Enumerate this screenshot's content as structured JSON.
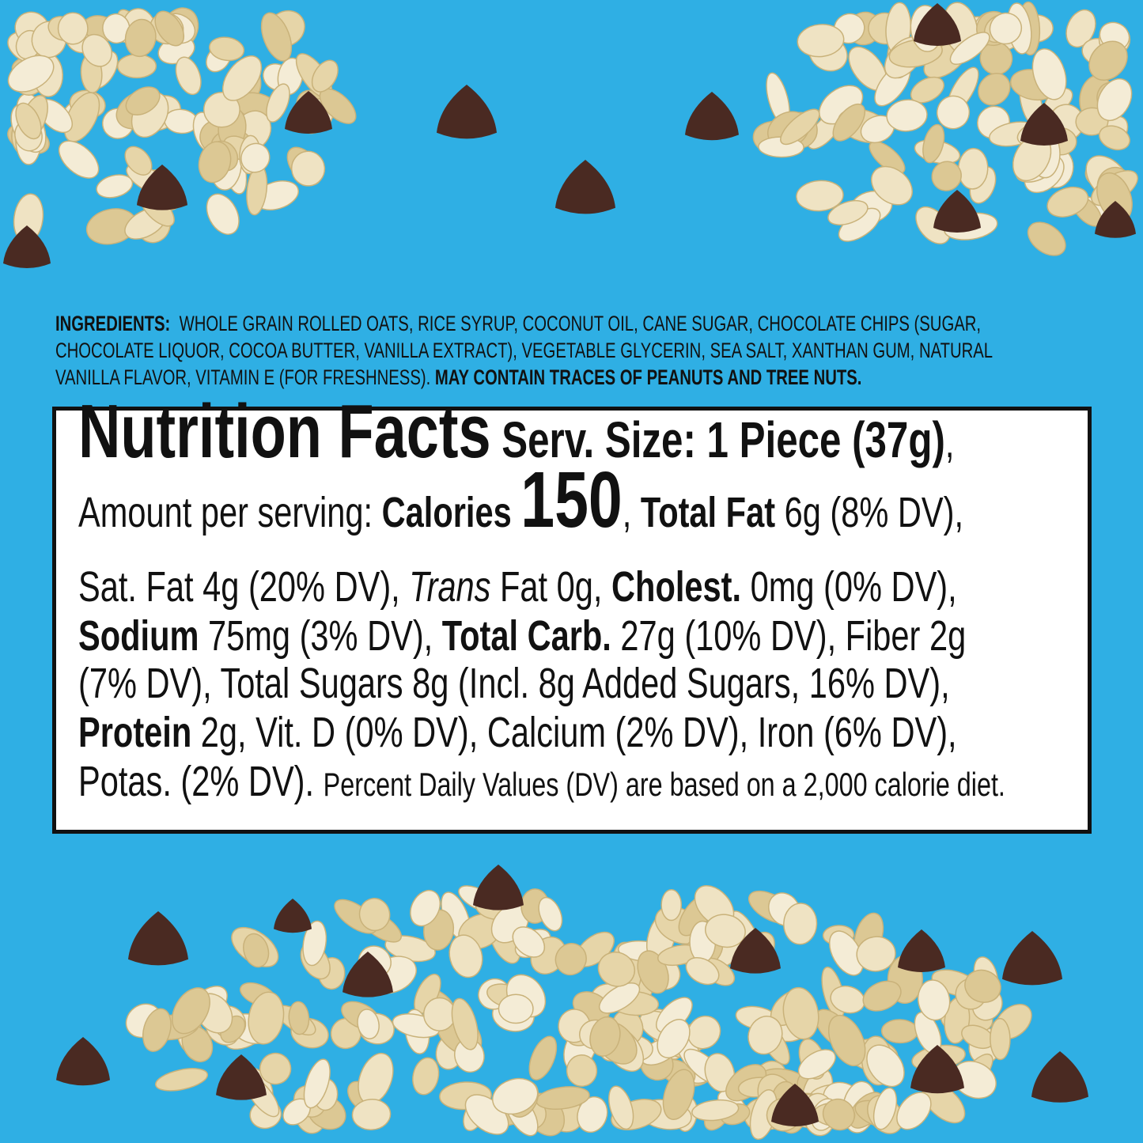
{
  "colors": {
    "background": "#2fafe4",
    "oat": "#efe2c0",
    "chocolate": "#4a2a22",
    "box_border": "#111111"
  },
  "ingredients": {
    "label": "INGREDIENTS:",
    "lines": [
      "WHOLE GRAIN ROLLED OATS, RICE SYRUP, COCONUT OIL, CANE SUGAR, CHOCOLATE CHIPS (SUGAR,",
      "CHOCOLATE LIQUOR, COCOA BUTTER, VANILLA EXTRACT), VEGETABLE GLYCERIN, SEA SALT, XANTHAN GUM, NATURAL",
      "VANILLA FLAVOR, VITAMIN E (FOR FRESHNESS)."
    ],
    "allergen": "MAY CONTAIN TRACES OF PEANUTS AND TREE NUTS."
  },
  "nutrition": {
    "lines": [
      [
        {
          "t": "Nutrition Facts",
          "s": "title"
        },
        {
          "t": " Serv. Size: 1 Piece (37g)",
          "s": "serv"
        },
        {
          "t": ",",
          "s": ""
        }
      ],
      [
        {
          "t": "Amount per serving: ",
          "s": ""
        },
        {
          "t": "Calories ",
          "s": "b"
        },
        {
          "t": "150",
          "s": "cal"
        },
        {
          "t": ", ",
          "s": ""
        },
        {
          "t": "Total Fat",
          "s": "b"
        },
        {
          "t": " 6g (8% DV),",
          "s": ""
        }
      ],
      [
        {
          "t": "Sat. Fat 4g (20% DV), ",
          "s": ""
        },
        {
          "t": "Trans",
          "s": "i"
        },
        {
          "t": " Fat 0g, ",
          "s": ""
        },
        {
          "t": "Cholest.",
          "s": "b"
        },
        {
          "t": " 0mg (0% DV),",
          "s": ""
        }
      ],
      [
        {
          "t": "Sodium",
          "s": "b"
        },
        {
          "t": " 75mg (3% DV), ",
          "s": ""
        },
        {
          "t": "Total Carb.",
          "s": "b"
        },
        {
          "t": " 27g (10% DV), Fiber 2g",
          "s": ""
        }
      ],
      [
        {
          "t": "(7% DV), Total Sugars 8g (Incl. 8g Added Sugars, 16% DV),",
          "s": ""
        }
      ],
      [
        {
          "t": "Protein",
          "s": "b"
        },
        {
          "t": " 2g, Vit. D (0% DV), Calcium (2% DV), Iron (6% DV),",
          "s": ""
        }
      ],
      [
        {
          "t": "Potas. (2% DV). ",
          "s": ""
        },
        {
          "t": "Percent Daily Values (DV) are based on a 2,000 calorie diet.",
          "s": "small"
        }
      ]
    ]
  }
}
